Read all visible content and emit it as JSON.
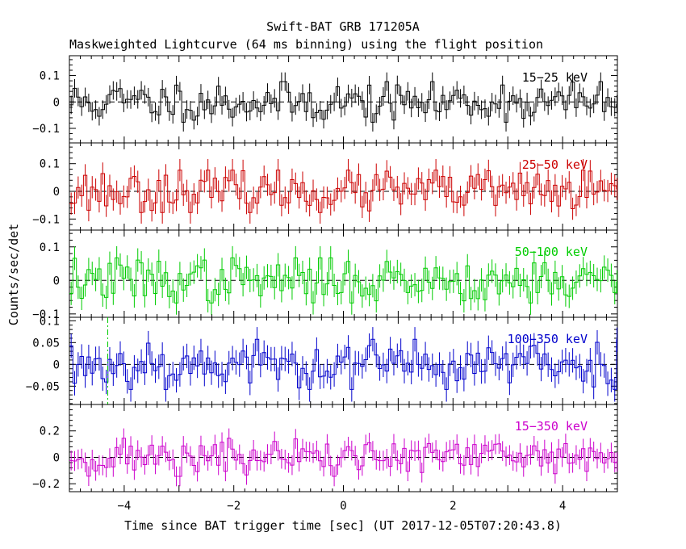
{
  "chart_data": {
    "type": "line",
    "title": "Swift-BAT GRB 171205A",
    "subtitle": "Maskweighted Lightcurve (64 ms binning) using the flight position",
    "xlabel": "Time since BAT trigger time [sec] (UT 2017-12-05T07:20:43.8)",
    "ylabel": "Counts/sec/det",
    "xlim": [
      -5,
      5
    ],
    "x_ticks": [
      -4,
      -2,
      0,
      2,
      4
    ],
    "x_tick_labels": [
      "−4",
      "−2",
      "0",
      "2",
      "4"
    ],
    "grid": false,
    "marker": {
      "type": "vertical-dashed-line",
      "panel": 4,
      "x": -4.3,
      "color": "#00cc00"
    },
    "panels": [
      {
        "band": "15−25 keV",
        "color": "#000000",
        "ylim": [
          -0.155,
          0.175
        ],
        "y_ticks": [
          -0.1,
          0,
          0.1
        ],
        "y_tick_labels": [
          "−0.1",
          "0",
          "0.1"
        ],
        "noise_sd": 0.04,
        "noise_amp": 0.032,
        "err": 0.035,
        "seed": 11
      },
      {
        "band": "25−50 keV",
        "color": "#cc0000",
        "ylim": [
          -0.14,
          0.175
        ],
        "y_ticks": [
          -0.1,
          0,
          0.1
        ],
        "y_tick_labels": [
          "−0.1",
          "0",
          "0.1"
        ],
        "noise_sd": 0.04,
        "noise_amp": 0.032,
        "err": 0.04,
        "seed": 23
      },
      {
        "band": "50−100 keV",
        "color": "#00cc00",
        "ylim": [
          -0.11,
          0.15
        ],
        "y_ticks": [
          -0.1,
          0,
          0.1
        ],
        "y_tick_labels": [
          "−0.1",
          "0",
          "0.1"
        ],
        "noise_sd": 0.035,
        "noise_amp": 0.028,
        "err": 0.035,
        "seed": 37
      },
      {
        "band": "100−350 keV",
        "color": "#0000cc",
        "ylim": [
          -0.092,
          0.108
        ],
        "y_ticks": [
          -0.05,
          0,
          0.05,
          0.1
        ],
        "y_tick_labels": [
          "−0.05",
          "0",
          "0.05",
          "0.1"
        ],
        "noise_sd": 0.03,
        "noise_amp": 0.024,
        "err": 0.028,
        "seed": 53
      },
      {
        "band": "15−350 keV",
        "color": "#cc00cc",
        "ylim": [
          -0.26,
          0.4
        ],
        "y_ticks": [
          -0.2,
          0,
          0.2
        ],
        "y_tick_labels": [
          "−0.2",
          "0",
          "0.2"
        ],
        "noise_sd": 0.075,
        "noise_amp": 0.06,
        "err": 0.075,
        "seed": 71
      }
    ],
    "bin_width_s": 0.064
  }
}
